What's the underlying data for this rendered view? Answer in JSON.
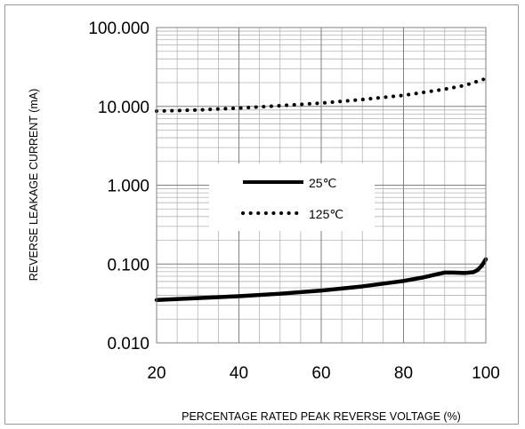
{
  "chart_data": {
    "type": "line",
    "title": "",
    "xlabel": "PERCENTAGE RATED PEAK REVERSE VOLTAGE (%)",
    "ylabel": "REVERSE LEAKAGE CURRENT (mA)",
    "xlim": [
      20,
      100
    ],
    "ylim": [
      0.01,
      100
    ],
    "yscale": "log",
    "x_ticks": [
      20,
      40,
      60,
      80,
      100
    ],
    "x_tick_labels": [
      "20",
      "40",
      "60",
      "80",
      "100"
    ],
    "y_ticks": [
      0.01,
      0.1,
      1,
      10,
      100
    ],
    "y_tick_labels": [
      "0.010",
      "0.100",
      "1.000",
      "10.000",
      "100.000"
    ],
    "grid": true,
    "legend_position": "center-left",
    "series": [
      {
        "name": "25℃",
        "style": "solid",
        "color": "#000000",
        "x": [
          20,
          30,
          40,
          50,
          60,
          70,
          80,
          85,
          90,
          92,
          95,
          97,
          98,
          99,
          100
        ],
        "y": [
          0.035,
          0.037,
          0.039,
          0.042,
          0.046,
          0.052,
          0.061,
          0.068,
          0.078,
          0.078,
          0.077,
          0.079,
          0.084,
          0.095,
          0.115
        ]
      },
      {
        "name": "125℃",
        "style": "dotted",
        "color": "#000000",
        "x": [
          20,
          30,
          40,
          50,
          60,
          70,
          80,
          90,
          95,
          100
        ],
        "y": [
          8.7,
          9.0,
          9.5,
          10.2,
          11.0,
          12.2,
          13.8,
          16.5,
          18.5,
          22.5
        ]
      }
    ]
  }
}
